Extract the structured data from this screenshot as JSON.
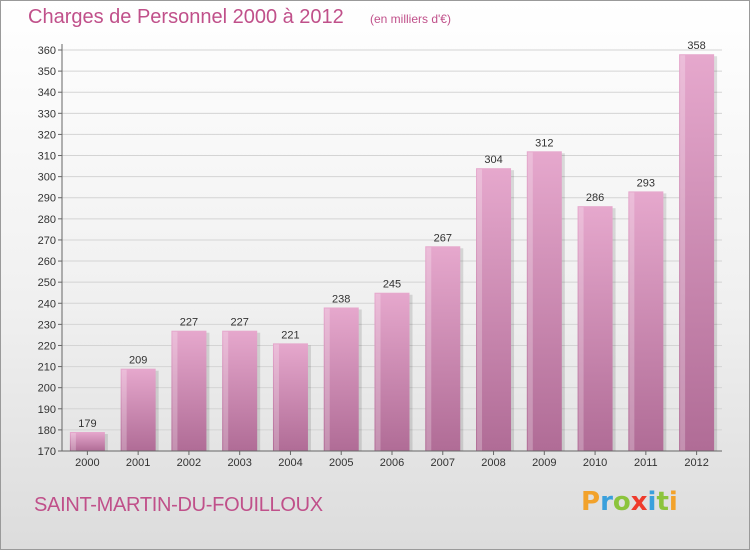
{
  "page": {
    "title": "Charges de Personnel 2000 à 2012",
    "subtitle": "(en milliers d'€)",
    "commune": "SAINT-MARTIN-DU-FOUILLOUX",
    "logo": {
      "text": "Proxiti",
      "letters": [
        {
          "ch": "P",
          "color": "#f2a22b"
        },
        {
          "ch": "r",
          "color": "#3aa0dc"
        },
        {
          "ch": "o",
          "color": "#8cc43c"
        },
        {
          "ch": "x",
          "color": "#ef3b2c"
        },
        {
          "ch": "i",
          "color": "#3aa0dc"
        },
        {
          "ch": "t",
          "color": "#8cc43c"
        },
        {
          "ch": "i",
          "color": "#f2a22b"
        }
      ]
    },
    "colors": {
      "bar_light": "#e6a8cd",
      "bar_dark": "#b06c96",
      "title": "#c0508a"
    }
  },
  "chart_data": {
    "type": "bar",
    "title": "Charges de Personnel 2000 à 2012",
    "subtitle": "(en milliers d'€)",
    "categories": [
      "2000",
      "2001",
      "2002",
      "2003",
      "2004",
      "2005",
      "2006",
      "2007",
      "2008",
      "2009",
      "2010",
      "2011",
      "2012"
    ],
    "values": [
      179,
      209,
      227,
      227,
      221,
      238,
      245,
      267,
      304,
      312,
      286,
      293,
      358
    ],
    "ylim": [
      170,
      360
    ],
    "yticks": [
      170,
      180,
      190,
      200,
      210,
      220,
      230,
      240,
      250,
      260,
      270,
      280,
      290,
      300,
      310,
      320,
      330,
      340,
      350,
      360
    ],
    "grid": true,
    "legend": "none"
  }
}
